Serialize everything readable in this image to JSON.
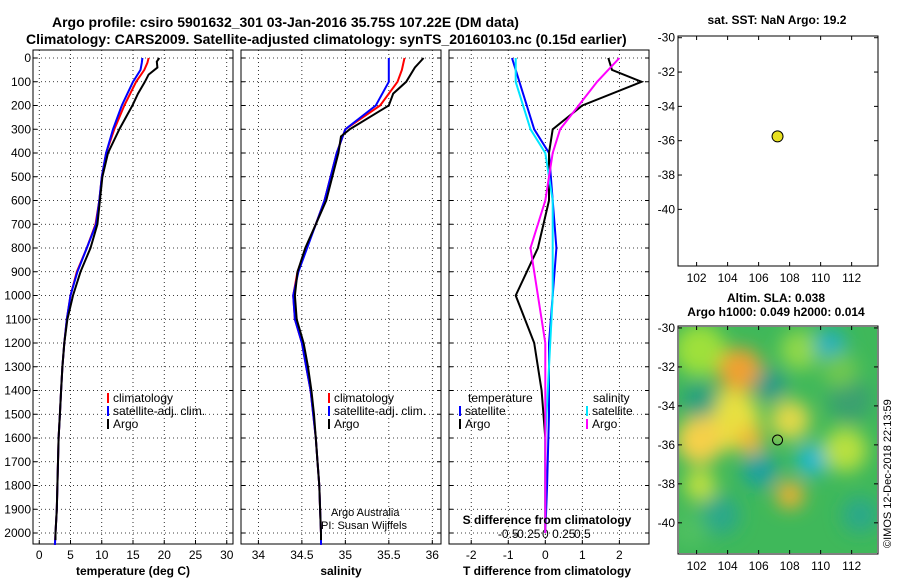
{
  "titles": {
    "line1": "Argo profile: csiro 5901632_301 03-Jan-2016 35.75S 107.22E (DM data)",
    "line2": "Climatology: CARS2009. Satellite-adjusted climatology: synTS_20160103.nc (0.15d earlier)"
  },
  "depth_ticks": [
    "0",
    "100",
    "200",
    "300",
    "400",
    "500",
    "600",
    "700",
    "800",
    "900",
    "1000",
    "1100",
    "1200",
    "1300",
    "1400",
    "1500",
    "1600",
    "1700",
    "1800",
    "1900",
    "2000"
  ],
  "colors": {
    "climatology": "#ff0000",
    "satellite": "#0000ff",
    "argo": "#000000",
    "s_satellite": "#00e5ff",
    "s_argo": "#ff00ff"
  },
  "temperature_panel": {
    "xlabel": "temperature (deg C)",
    "xticks": [
      "0",
      "5",
      "10",
      "15",
      "20",
      "25",
      "30"
    ],
    "legend": [
      "climatology",
      "satellite-adj. clim.",
      "Argo"
    ]
  },
  "salinity_panel": {
    "xlabel": "salinity",
    "xticks": [
      "34",
      "34.5",
      "35",
      "35.5",
      "36"
    ],
    "legend": [
      "climatology",
      "satellite-adj. clim.",
      "Argo"
    ],
    "credit1": "Argo Australia",
    "credit2": "PI: Susan Wijffels"
  },
  "diff_panel": {
    "xlabel": "T difference from climatology",
    "xlabel2": "S difference from climatology",
    "xticks": [
      "-2",
      "-1",
      "0",
      "1",
      "2"
    ],
    "sticks": [
      "-0.5",
      "-0.25",
      "0",
      "0.25",
      "0.5"
    ],
    "legend_t_title": "temperature",
    "legend_s_title": "salinity",
    "legend_t": [
      "satellite",
      "Argo"
    ],
    "legend_s": [
      "satellite",
      "Argo"
    ]
  },
  "sst_map": {
    "title": "sat. SST: NaN Argo: 19.2",
    "lat_ticks": [
      "-30",
      "-32",
      "-34",
      "-36",
      "-38",
      "-40"
    ],
    "lon_ticks": [
      "102",
      "104",
      "106",
      "108",
      "110",
      "112"
    ],
    "marker": {
      "lon": 107.22,
      "lat": -35.75,
      "color": "#e8e020"
    }
  },
  "sla_map": {
    "title1": "Altim. SLA: 0.038",
    "title2": "Argo h1000: 0.049 h2000: 0.014",
    "lat_ticks": [
      "-30",
      "-32",
      "-34",
      "-36",
      "-38",
      "-40"
    ],
    "lon_ticks": [
      "102",
      "104",
      "106",
      "108",
      "110",
      "112"
    ],
    "marker": {
      "lon": 107.22,
      "lat": -35.75
    }
  },
  "watermark": "©IMOS 12-Dec-2018 22:13:59",
  "chart_data": [
    {
      "type": "line",
      "title": "",
      "xlabel": "temperature (deg C)",
      "ylabel": "",
      "xlim": [
        -1,
        31
      ],
      "ylim": [
        2060,
        0
      ],
      "series": [
        {
          "name": "climatology",
          "points": [
            [
              17.5,
              0
            ],
            [
              17.3,
              20
            ],
            [
              16.8,
              50
            ],
            [
              15.5,
              100
            ],
            [
              13.6,
              200
            ],
            [
              12.0,
              300
            ],
            [
              10.7,
              400
            ],
            [
              10.0,
              500
            ],
            [
              9.6,
              600
            ],
            [
              9.0,
              700
            ],
            [
              7.6,
              800
            ],
            [
              6.0,
              900
            ],
            [
              5.0,
              1000
            ],
            [
              4.4,
              1100
            ],
            [
              4.0,
              1200
            ],
            [
              3.7,
              1300
            ],
            [
              3.5,
              1400
            ],
            [
              3.3,
              1500
            ],
            [
              3.1,
              1600
            ],
            [
              3.0,
              1700
            ],
            [
              2.9,
              1800
            ],
            [
              2.8,
              1900
            ],
            [
              2.6,
              2000
            ],
            [
              2.5,
              2050
            ]
          ]
        },
        {
          "name": "satellite-adj. clim.",
          "points": [
            [
              16.5,
              0
            ],
            [
              16.4,
              20
            ],
            [
              16.2,
              50
            ],
            [
              15.0,
              100
            ],
            [
              13.2,
              200
            ],
            [
              11.8,
              300
            ],
            [
              10.7,
              400
            ],
            [
              10.0,
              500
            ],
            [
              9.6,
              600
            ],
            [
              9.1,
              700
            ],
            [
              7.6,
              800
            ],
            [
              6.1,
              900
            ],
            [
              5.0,
              1000
            ],
            [
              4.4,
              1100
            ],
            [
              4.0,
              1200
            ],
            [
              3.7,
              1300
            ],
            [
              3.5,
              1400
            ],
            [
              3.3,
              1500
            ],
            [
              3.1,
              1600
            ],
            [
              3.0,
              1700
            ],
            [
              2.9,
              1800
            ],
            [
              2.8,
              1900
            ],
            [
              2.6,
              2000
            ],
            [
              2.5,
              2050
            ]
          ]
        },
        {
          "name": "Argo",
          "points": [
            [
              19.2,
              0
            ],
            [
              18.8,
              15
            ],
            [
              18.9,
              40
            ],
            [
              17.5,
              70
            ],
            [
              16.9,
              100
            ],
            [
              15.8,
              150
            ],
            [
              14.9,
              200
            ],
            [
              12.8,
              300
            ],
            [
              11.0,
              400
            ],
            [
              10.1,
              500
            ],
            [
              9.7,
              600
            ],
            [
              9.3,
              700
            ],
            [
              8.2,
              800
            ],
            [
              6.6,
              900
            ],
            [
              5.4,
              1000
            ],
            [
              4.5,
              1100
            ],
            [
              4.0,
              1200
            ],
            [
              3.7,
              1300
            ],
            [
              3.5,
              1400
            ],
            [
              3.3,
              1500
            ],
            [
              3.1,
              1600
            ],
            [
              3.0,
              1700
            ],
            [
              2.9,
              1800
            ],
            [
              2.8,
              1900
            ],
            [
              2.6,
              2000
            ],
            [
              2.6,
              2030
            ]
          ]
        }
      ]
    },
    {
      "type": "line",
      "title": "",
      "xlabel": "salinity",
      "ylabel": "",
      "xlim": [
        33.8,
        36.1
      ],
      "ylim": [
        2060,
        0
      ],
      "series": [
        {
          "name": "climatology",
          "points": [
            [
              35.68,
              0
            ],
            [
              35.65,
              50
            ],
            [
              35.6,
              100
            ],
            [
              35.4,
              200
            ],
            [
              35.0,
              300
            ],
            [
              34.9,
              400
            ],
            [
              34.83,
              500
            ],
            [
              34.76,
              600
            ],
            [
              34.66,
              700
            ],
            [
              34.55,
              800
            ],
            [
              34.45,
              900
            ],
            [
              34.4,
              1000
            ],
            [
              34.42,
              1100
            ],
            [
              34.5,
              1200
            ],
            [
              34.55,
              1300
            ],
            [
              34.6,
              1400
            ],
            [
              34.63,
              1500
            ],
            [
              34.66,
              1600
            ],
            [
              34.68,
              1700
            ],
            [
              34.7,
              1800
            ],
            [
              34.71,
              1900
            ],
            [
              34.72,
              2000
            ],
            [
              34.72,
              2050
            ]
          ]
        },
        {
          "name": "satellite-adj. clim.",
          "points": [
            [
              35.5,
              0
            ],
            [
              35.5,
              50
            ],
            [
              35.5,
              100
            ],
            [
              35.35,
              200
            ],
            [
              35.0,
              300
            ],
            [
              34.9,
              400
            ],
            [
              34.83,
              500
            ],
            [
              34.76,
              600
            ],
            [
              34.66,
              700
            ],
            [
              34.56,
              800
            ],
            [
              34.46,
              900
            ],
            [
              34.4,
              1000
            ],
            [
              34.42,
              1100
            ],
            [
              34.5,
              1200
            ],
            [
              34.55,
              1300
            ],
            [
              34.6,
              1400
            ],
            [
              34.63,
              1500
            ],
            [
              34.66,
              1600
            ],
            [
              34.68,
              1700
            ],
            [
              34.7,
              1800
            ],
            [
              34.71,
              1900
            ],
            [
              34.72,
              2000
            ],
            [
              34.72,
              2050
            ]
          ]
        },
        {
          "name": "Argo",
          "points": [
            [
              35.9,
              0
            ],
            [
              35.8,
              40
            ],
            [
              35.7,
              100
            ],
            [
              35.55,
              150
            ],
            [
              35.5,
              200
            ],
            [
              35.05,
              300
            ],
            [
              34.95,
              330
            ],
            [
              34.92,
              400
            ],
            [
              34.85,
              500
            ],
            [
              34.78,
              600
            ],
            [
              34.66,
              700
            ],
            [
              34.54,
              800
            ],
            [
              34.45,
              900
            ],
            [
              34.42,
              1000
            ],
            [
              34.44,
              1100
            ],
            [
              34.52,
              1200
            ],
            [
              34.57,
              1300
            ],
            [
              34.61,
              1400
            ],
            [
              34.64,
              1500
            ],
            [
              34.66,
              1600
            ],
            [
              34.68,
              1700
            ],
            [
              34.7,
              1800
            ],
            [
              34.71,
              1900
            ],
            [
              34.72,
              2000
            ],
            [
              34.72,
              2030
            ]
          ]
        }
      ]
    },
    {
      "type": "line",
      "title": "",
      "xlabel": "T difference from climatology",
      "ylabel": "",
      "xlim": [
        -2.6,
        2.8
      ],
      "ylim": [
        2060,
        0
      ],
      "series": [
        {
          "name": "temperature satellite",
          "points": [
            [
              -0.9,
              0
            ],
            [
              -0.7,
              100
            ],
            [
              -0.3,
              300
            ],
            [
              0.1,
              400
            ],
            [
              0.2,
              600
            ],
            [
              0.3,
              800
            ],
            [
              0.2,
              1000
            ],
            [
              0.1,
              1200
            ],
            [
              0.1,
              1500
            ],
            [
              0.05,
              1800
            ],
            [
              0.0,
              2000
            ]
          ]
        },
        {
          "name": "temperature Argo",
          "points": [
            [
              1.7,
              0
            ],
            [
              1.8,
              50
            ],
            [
              2.6,
              100
            ],
            [
              1.0,
              200
            ],
            [
              0.2,
              300
            ],
            [
              0.1,
              400
            ],
            [
              0.1,
              600
            ],
            [
              -0.2,
              800
            ],
            [
              -0.5,
              900
            ],
            [
              -0.8,
              1000
            ],
            [
              -0.3,
              1200
            ],
            [
              -0.1,
              1400
            ],
            [
              0.0,
              1600
            ],
            [
              0.0,
              1800
            ],
            [
              0.0,
              2000
            ]
          ]
        },
        {
          "name": "salinity satellite",
          "points": [
            [
              -0.4,
              0
            ],
            [
              -0.4,
              100
            ],
            [
              -0.2,
              300
            ],
            [
              0.0,
              400
            ],
            [
              0.1,
              600
            ],
            [
              0.1,
              800
            ],
            [
              0.1,
              1000
            ],
            [
              0.05,
              1300
            ],
            [
              0.0,
              1600
            ],
            [
              0.0,
              2000
            ]
          ]
        },
        {
          "name": "salinity Argo",
          "points": [
            [
              1.0,
              0
            ],
            [
              0.7,
              100
            ],
            [
              0.2,
              300
            ],
            [
              0.1,
              400
            ],
            [
              0.0,
              600
            ],
            [
              -0.2,
              800
            ],
            [
              -0.1,
              1000
            ],
            [
              0.0,
              1200
            ],
            [
              0.0,
              1500
            ],
            [
              0.0,
              2000
            ]
          ]
        }
      ]
    }
  ]
}
